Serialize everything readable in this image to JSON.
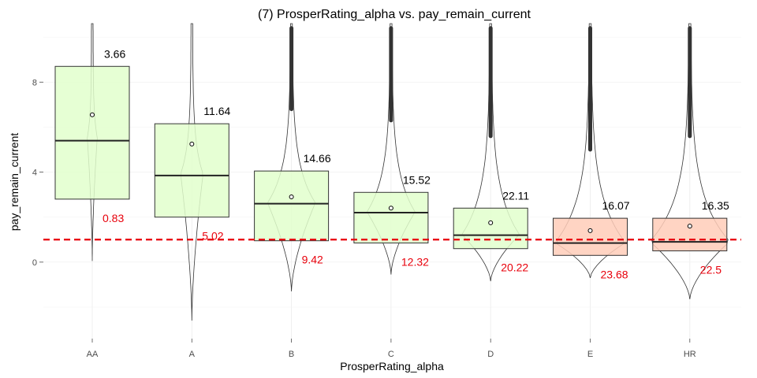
{
  "chart_data": {
    "type": "box",
    "title": "(7) ProsperRating_alpha vs. pay_remain_current",
    "xlabel": "ProsperRating_alpha",
    "ylabel": "pay_remain_current",
    "ylim": [
      -3.4,
      10.6
    ],
    "yticks": [
      0,
      4,
      8
    ],
    "grid": true,
    "reference_line": {
      "y": 1.0,
      "color": "#e8000b",
      "style": "dashed"
    },
    "colors": {
      "fill_good": "#e2ffcc",
      "fill_bad": "#ffccb8",
      "annotation_low": "#e8000b",
      "outline": "#333333"
    },
    "categories": [
      "AA",
      "A",
      "B",
      "C",
      "D",
      "E",
      "HR"
    ],
    "boxes": [
      {
        "category": "AA",
        "q1": 2.8,
        "median": 5.4,
        "q3": 8.7,
        "mean": 6.55,
        "top_label": "3.66",
        "bottom_label": "0.83",
        "fill": "good"
      },
      {
        "category": "A",
        "q1": 2.0,
        "median": 3.85,
        "q3": 6.15,
        "mean": 5.25,
        "top_label": "11.64",
        "bottom_label": "5.02",
        "fill": "good"
      },
      {
        "category": "B",
        "q1": 0.95,
        "median": 2.6,
        "q3": 4.05,
        "mean": 2.9,
        "top_label": "14.66",
        "bottom_label": "9.42",
        "fill": "good"
      },
      {
        "category": "C",
        "q1": 0.85,
        "median": 2.2,
        "q3": 3.1,
        "mean": 2.4,
        "top_label": "15.52",
        "bottom_label": "12.32",
        "fill": "good"
      },
      {
        "category": "D",
        "q1": 0.6,
        "median": 1.2,
        "q3": 2.4,
        "mean": 1.75,
        "top_label": "22.11",
        "bottom_label": "20.22",
        "fill": "good"
      },
      {
        "category": "E",
        "q1": 0.3,
        "median": 0.85,
        "q3": 1.95,
        "mean": 1.4,
        "top_label": "16.07",
        "bottom_label": "23.68",
        "fill": "bad"
      },
      {
        "category": "HR",
        "q1": 0.5,
        "median": 0.9,
        "q3": 1.95,
        "mean": 1.6,
        "top_label": "16.35",
        "bottom_label": "22.5",
        "fill": "bad"
      }
    ]
  }
}
